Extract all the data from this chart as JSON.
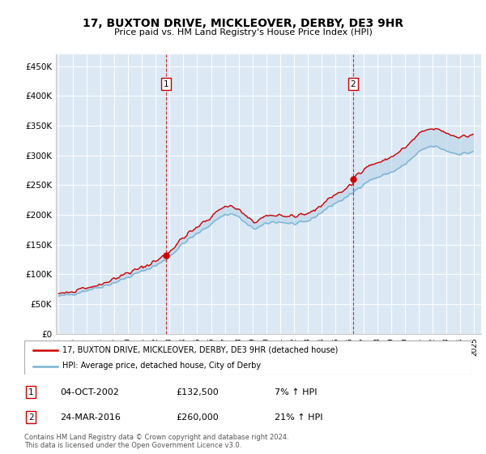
{
  "title": "17, BUXTON DRIVE, MICKLEOVER, DERBY, DE3 9HR",
  "subtitle": "Price paid vs. HM Land Registry's House Price Index (HPI)",
  "ylabel_ticks": [
    "£0",
    "£50K",
    "£100K",
    "£150K",
    "£200K",
    "£250K",
    "£300K",
    "£350K",
    "£400K",
    "£450K"
  ],
  "ylabel_values": [
    0,
    50000,
    100000,
    150000,
    200000,
    250000,
    300000,
    350000,
    400000,
    450000
  ],
  "ylim": [
    0,
    470000
  ],
  "xlim_start": 1994.8,
  "xlim_end": 2025.5,
  "plot_bg_color": "#dce9f5",
  "hpi_color": "#7ab3d4",
  "price_color": "#cc0000",
  "fill_color": "#b8d4e8",
  "legend_label_price": "17, BUXTON DRIVE, MICKLEOVER, DERBY, DE3 9HR (detached house)",
  "legend_label_hpi": "HPI: Average price, detached house, City of Derby",
  "sale1_date": "04-OCT-2002",
  "sale1_price": 132500,
  "sale1_pct": "7% ↑ HPI",
  "sale1_year": 2002.75,
  "sale2_date": "24-MAR-2016",
  "sale2_price": 260000,
  "sale2_pct": "21% ↑ HPI",
  "sale2_year": 2016.25,
  "footer": "Contains HM Land Registry data © Crown copyright and database right 2024.\nThis data is licensed under the Open Government Licence v3.0."
}
